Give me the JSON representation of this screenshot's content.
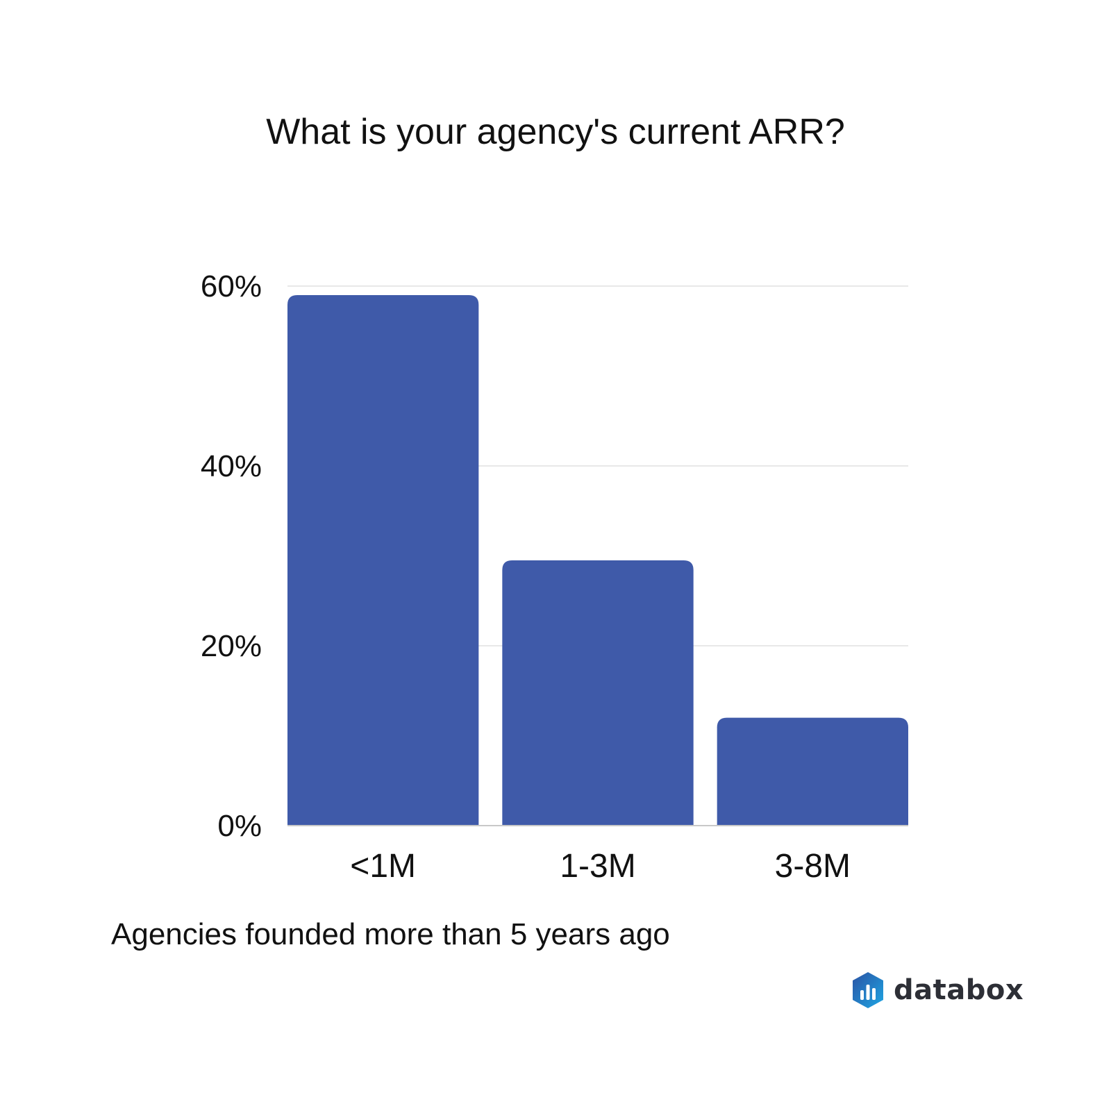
{
  "chart_data": {
    "type": "bar",
    "title": "What is your agency's current ARR?",
    "categories": [
      "<1M",
      "1-3M",
      "3-8M"
    ],
    "values": [
      59,
      29.5,
      12
    ],
    "y_ticks": [
      "0%",
      "20%",
      "40%",
      "60%"
    ],
    "y_tick_values": [
      0,
      20,
      40,
      60
    ],
    "ylim": [
      0,
      60
    ],
    "xlabel": "",
    "ylabel": "",
    "grid": true,
    "bar_color": "#3f5aa9",
    "grid_color": "#e0e0e0",
    "caption": "Agencies founded more than 5 years ago"
  },
  "brand": {
    "name": "databox",
    "colors": [
      "#2a52a4",
      "#1ea6e3"
    ]
  }
}
